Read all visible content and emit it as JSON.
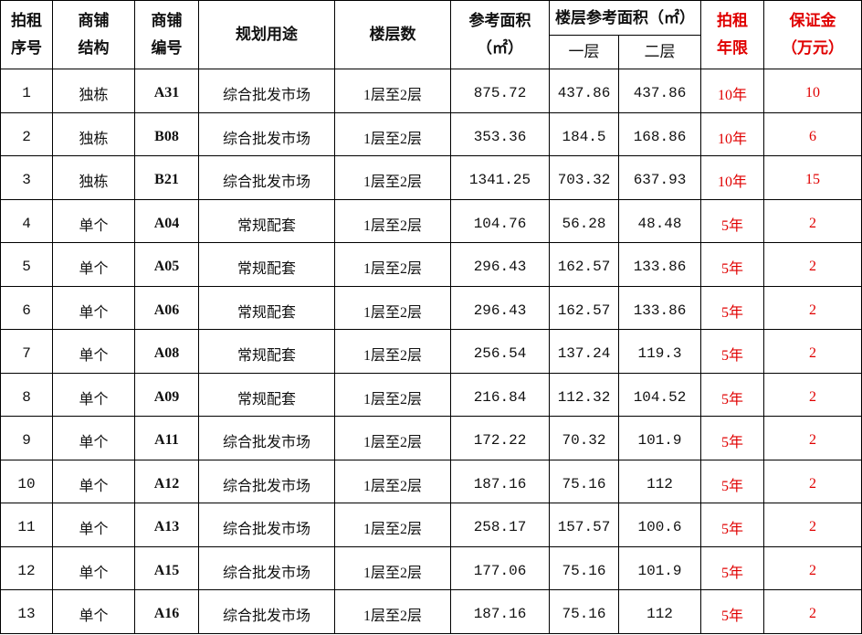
{
  "headers": {
    "seq": "拍租序号",
    "structure": "商铺结构",
    "code": "商铺编号",
    "use": "规划用途",
    "floors": "楼层数",
    "area": "参考面积（㎡）",
    "floor_area": "楼层参考面积（㎡）",
    "floor1": "一层",
    "floor2": "二层",
    "term": "拍租年限",
    "deposit": "保证金（万元）"
  },
  "header_lines": {
    "seq": [
      "拍租",
      "序号"
    ],
    "structure": [
      "商铺",
      "结构"
    ],
    "code": [
      "商铺",
      "编号"
    ],
    "area": [
      "参考面积",
      "（㎡）"
    ],
    "term": [
      "拍租",
      "年限"
    ],
    "deposit": [
      "保证金",
      "（万元）"
    ]
  },
  "accent_color": "#e00000",
  "rows": [
    {
      "seq": "1",
      "structure": "独栋",
      "code": "A31",
      "use": "综合批发市场",
      "floors": "1层至2层",
      "area": "875.72",
      "f1": "437.86",
      "f2": "437.86",
      "term": "10年",
      "deposit": "10"
    },
    {
      "seq": "2",
      "structure": "独栋",
      "code": "B08",
      "use": "综合批发市场",
      "floors": "1层至2层",
      "area": "353.36",
      "f1": "184.5",
      "f2": "168.86",
      "term": "10年",
      "deposit": "6"
    },
    {
      "seq": "3",
      "structure": "独栋",
      "code": "B21",
      "use": "综合批发市场",
      "floors": "1层至2层",
      "area": "1341.25",
      "f1": "703.32",
      "f2": "637.93",
      "term": "10年",
      "deposit": "15"
    },
    {
      "seq": "4",
      "structure": "单个",
      "code": "A04",
      "use": "常规配套",
      "floors": "1层至2层",
      "area": "104.76",
      "f1": "56.28",
      "f2": "48.48",
      "term": "5年",
      "deposit": "2"
    },
    {
      "seq": "5",
      "structure": "单个",
      "code": "A05",
      "use": "常规配套",
      "floors": "1层至2层",
      "area": "296.43",
      "f1": "162.57",
      "f2": "133.86",
      "term": "5年",
      "deposit": "2"
    },
    {
      "seq": "6",
      "structure": "单个",
      "code": "A06",
      "use": "常规配套",
      "floors": "1层至2层",
      "area": "296.43",
      "f1": "162.57",
      "f2": "133.86",
      "term": "5年",
      "deposit": "2"
    },
    {
      "seq": "7",
      "structure": "单个",
      "code": "A08",
      "use": "常规配套",
      "floors": "1层至2层",
      "area": "256.54",
      "f1": "137.24",
      "f2": "119.3",
      "term": "5年",
      "deposit": "2"
    },
    {
      "seq": "8",
      "structure": "单个",
      "code": "A09",
      "use": "常规配套",
      "floors": "1层至2层",
      "area": "216.84",
      "f1": "112.32",
      "f2": "104.52",
      "term": "5年",
      "deposit": "2"
    },
    {
      "seq": "9",
      "structure": "单个",
      "code": "A11",
      "use": "综合批发市场",
      "floors": "1层至2层",
      "area": "172.22",
      "f1": "70.32",
      "f2": "101.9",
      "term": "5年",
      "deposit": "2"
    },
    {
      "seq": "10",
      "structure": "单个",
      "code": "A12",
      "use": "综合批发市场",
      "floors": "1层至2层",
      "area": "187.16",
      "f1": "75.16",
      "f2": "112",
      "term": "5年",
      "deposit": "2"
    },
    {
      "seq": "11",
      "structure": "单个",
      "code": "A13",
      "use": "综合批发市场",
      "floors": "1层至2层",
      "area": "258.17",
      "f1": "157.57",
      "f2": "100.6",
      "term": "5年",
      "deposit": "2"
    },
    {
      "seq": "12",
      "structure": "单个",
      "code": "A15",
      "use": "综合批发市场",
      "floors": "1层至2层",
      "area": "177.06",
      "f1": "75.16",
      "f2": "101.9",
      "term": "5年",
      "deposit": "2"
    },
    {
      "seq": "13",
      "structure": "单个",
      "code": "A16",
      "use": "综合批发市场",
      "floors": "1层至2层",
      "area": "187.16",
      "f1": "75.16",
      "f2": "112",
      "term": "5年",
      "deposit": "2"
    }
  ]
}
